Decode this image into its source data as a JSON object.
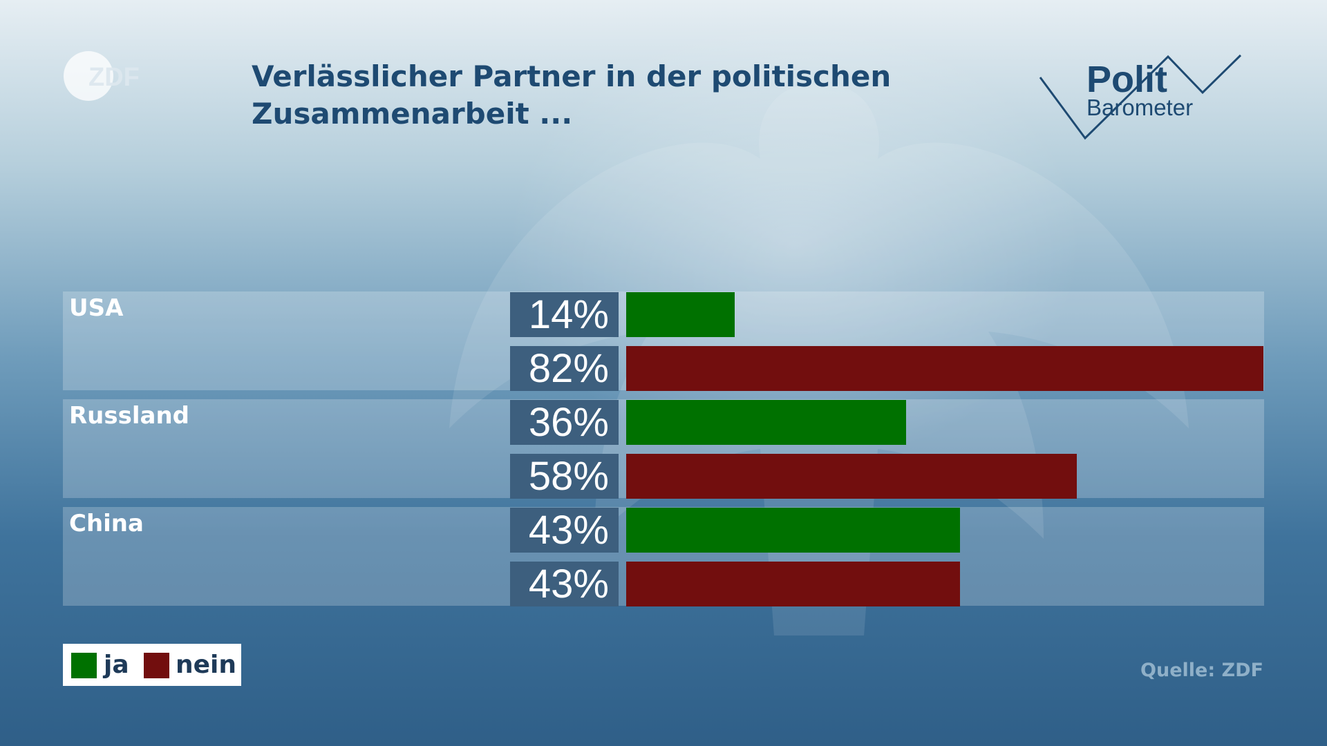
{
  "header": {
    "title_line1": "Verlässlicher Partner in der politischen",
    "title_line2": "Zusammenarbeit ...",
    "broadcaster_logo_text": "ZDF",
    "program_logo": {
      "polit": "Polit",
      "barometer": "Barometer"
    }
  },
  "legend": {
    "ja": "ja",
    "nein": "nein"
  },
  "source": "Quelle: ZDF",
  "colors": {
    "ja": "#007100",
    "nein": "#720e0e",
    "title": "#1e4a72"
  },
  "chart_data": {
    "type": "bar",
    "orientation": "horizontal",
    "title": "Verlässlicher Partner in der politischen Zusammenarbeit ...",
    "unit": "%",
    "categories": [
      "USA",
      "Russland",
      "China"
    ],
    "series": [
      {
        "name": "ja",
        "values": [
          14,
          36,
          43
        ],
        "labels": [
          "14%",
          "36%",
          "43%"
        ],
        "color": "#007100"
      },
      {
        "name": "nein",
        "values": [
          82,
          58,
          43
        ],
        "labels": [
          "82%",
          "58%",
          "43%"
        ],
        "color": "#720e0e"
      }
    ],
    "xlim": [
      0,
      82
    ],
    "legend": "bottom-left",
    "grid": false
  }
}
